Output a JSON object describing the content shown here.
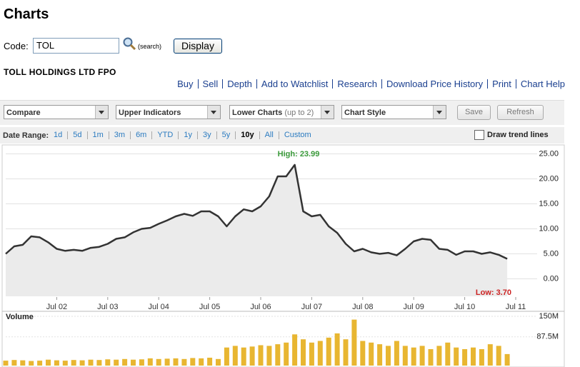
{
  "header": {
    "title": "Charts"
  },
  "search": {
    "code_label": "Code:",
    "code_value": "TOL",
    "search_link": "(search)",
    "display_button": "Display"
  },
  "security_name": "TOLL HOLDINGS LTD FPO",
  "actions": [
    "Buy",
    "Sell",
    "Depth",
    "Add to Watchlist",
    "Research",
    "Download Price History",
    "Print",
    "Chart Help"
  ],
  "toolbar": {
    "dropdowns": [
      {
        "label": "Compare"
      },
      {
        "label": "Upper Indicators"
      },
      {
        "label": "Lower Charts",
        "hint": "(up to 2)"
      },
      {
        "label": "Chart Style"
      }
    ],
    "buttons": [
      "Save",
      "Refresh"
    ]
  },
  "date_range": {
    "label": "Date Range:",
    "options": [
      "1d",
      "5d",
      "1m",
      "3m",
      "6m",
      "YTD",
      "1y",
      "3y",
      "5y",
      "10y",
      "All",
      "Custom"
    ],
    "selected": "10y",
    "trend_lines_label": "Draw trend lines"
  },
  "chart_data": [
    {
      "type": "area",
      "color": "#333333",
      "fill": "#ebebeb",
      "grid": true,
      "annotations": [
        {
          "text": "High: 23.99",
          "color": "#3a9a3a"
        },
        {
          "text": "Low: 3.70",
          "color": "#cc2222"
        }
      ],
      "categories": [
        null,
        null,
        null,
        null,
        null,
        null,
        "Jul 02",
        null,
        null,
        null,
        null,
        null,
        "Jul 03",
        null,
        null,
        null,
        null,
        null,
        "Jul 04",
        null,
        null,
        null,
        null,
        null,
        "Jul 05",
        null,
        null,
        null,
        null,
        null,
        "Jul 06",
        null,
        null,
        null,
        null,
        null,
        "Jul 07",
        null,
        null,
        null,
        null,
        null,
        "Jul 08",
        null,
        null,
        null,
        null,
        null,
        "Jul 09",
        null,
        null,
        null,
        null,
        null,
        "Jul 10",
        null,
        null,
        null,
        null,
        null,
        "Jul 11"
      ],
      "values": [
        5.0,
        6.5,
        6.8,
        8.5,
        8.3,
        7.3,
        6.0,
        5.6,
        5.8,
        5.6,
        6.2,
        6.4,
        7.0,
        8.0,
        8.3,
        9.3,
        10.0,
        10.2,
        11.0,
        11.7,
        12.5,
        13.0,
        12.6,
        13.5,
        13.5,
        12.5,
        10.5,
        12.5,
        13.9,
        13.5,
        14.5,
        16.5,
        20.5,
        20.5,
        22.8,
        13.5,
        12.5,
        12.8,
        10.5,
        9.2,
        7.0,
        5.5,
        6.0,
        5.3,
        5.0,
        5.2,
        4.7,
        6.0,
        7.5,
        8.0,
        7.8,
        6.0,
        5.8,
        4.8,
        5.5,
        5.5,
        5.0,
        5.3,
        4.8,
        4.0,
        null
      ],
      "ylim": [
        -3.5,
        26.5
      ],
      "yticks": [
        {
          "value": 0,
          "label": "0.00"
        },
        {
          "value": 5,
          "label": "5.00"
        },
        {
          "value": 10,
          "label": "10.00"
        },
        {
          "value": 15,
          "label": "15.00"
        },
        {
          "value": 20,
          "label": "20.00"
        },
        {
          "value": 25,
          "label": "25.00"
        }
      ]
    },
    {
      "type": "bar",
      "title": "Volume",
      "color": "#e8b631",
      "grid": true,
      "values": [
        15000000,
        17000000,
        16000000,
        14000000,
        15000000,
        18000000,
        16000000,
        15000000,
        17000000,
        16000000,
        18000000,
        17000000,
        19000000,
        18000000,
        20000000,
        18000000,
        19000000,
        22000000,
        20000000,
        21000000,
        22000000,
        20000000,
        23000000,
        22000000,
        24000000,
        20000000,
        55000000,
        60000000,
        55000000,
        58000000,
        62000000,
        60000000,
        65000000,
        70000000,
        95000000,
        80000000,
        70000000,
        75000000,
        85000000,
        98000000,
        80000000,
        140000000,
        75000000,
        70000000,
        65000000,
        60000000,
        75000000,
        60000000,
        55000000,
        60000000,
        50000000,
        60000000,
        70000000,
        55000000,
        50000000,
        55000000,
        50000000,
        65000000,
        60000000,
        35000000,
        null
      ],
      "ylim": [
        0,
        150000000
      ],
      "yticks": [
        {
          "value": 87500000,
          "label": "87.5M"
        },
        {
          "value": 150000000,
          "label": "150M"
        }
      ]
    }
  ]
}
